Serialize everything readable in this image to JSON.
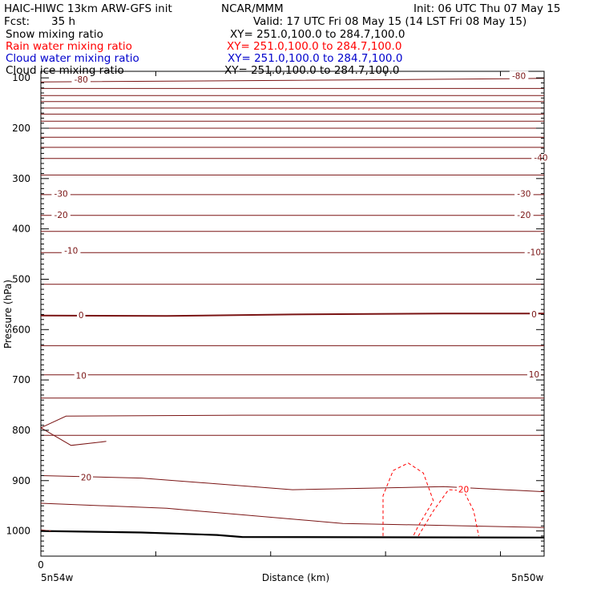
{
  "header": {
    "model_title": "HAIC-HIWC 13km ARW-GFS init",
    "org": "NCAR/MMM",
    "init": "Init: 06 UTC Thu 07 May 15",
    "fcst_label": "Fcst:",
    "fcst_value": "35 h",
    "valid": "Valid: 17 UTC Fri 08 May 15 (14 LST Fri 08 May 15)"
  },
  "legend": [
    {
      "label": "Snow mixing ratio",
      "xy": "XY= 251.0,100.0 to 284.7,100.0",
      "color": "#000000"
    },
    {
      "label": "Rain water mixing ratio",
      "xy": "XY= 251.0,100.0 to 284.7,100.0",
      "color": "#ff0000"
    },
    {
      "label": "Cloud water mixing ratio",
      "xy": "XY= 251.0,100.0 to 284.7,100.0",
      "color": "#0000cc"
    },
    {
      "label": "Cloud ice mixing ratio",
      "xy": "XY= 251.0,100.0 to 284.7,100.0",
      "color": "#000000"
    }
  ],
  "chart_data": {
    "type": "line",
    "xlabel": "Distance (km)",
    "ylabel": "Pressure (hPa)",
    "x_tick_labels": {
      "left": "5n54w",
      "right": "5n50w",
      "zero": "0"
    },
    "ylim": [
      1050,
      87
    ],
    "yticks": [
      100,
      200,
      300,
      400,
      500,
      600,
      700,
      800,
      900,
      1000
    ],
    "contour_color": "#7a1414",
    "rain_color": "#ff0000",
    "contour_labels": [
      {
        "text": "-80",
        "x": 0.08,
        "p": 103
      },
      {
        "text": "-80",
        "x": 0.95,
        "p": 96
      },
      {
        "text": "-40",
        "x": 1.05,
        "p": 258
      },
      {
        "text": "-30",
        "x": 0.04,
        "p": 330
      },
      {
        "text": "-30",
        "x": 0.96,
        "p": 330
      },
      {
        "text": "-20",
        "x": 0.04,
        "p": 372
      },
      {
        "text": "-20",
        "x": 0.96,
        "p": 372
      },
      {
        "text": "-10",
        "x": 0.06,
        "p": 443
      },
      {
        "text": "-10",
        "x": 0.98,
        "p": 446
      },
      {
        "text": "0",
        "x": 0.08,
        "p": 571
      },
      {
        "text": "0",
        "x": 0.98,
        "p": 569
      },
      {
        "text": "10",
        "x": 0.08,
        "p": 691
      },
      {
        "text": "10",
        "x": 0.98,
        "p": 689
      },
      {
        "text": "20",
        "x": 0.09,
        "p": 893
      },
      {
        "text": "20",
        "x": 0.84,
        "p": 917,
        "rain": true
      }
    ],
    "isolines": [
      [
        [
          0,
          108
        ],
        [
          0.5,
          105
        ],
        [
          0.9,
          102
        ],
        [
          1,
          101
        ]
      ],
      [
        [
          0,
          121
        ],
        [
          1,
          121
        ]
      ],
      [
        [
          0,
          135
        ],
        [
          1,
          135
        ]
      ],
      [
        [
          0,
          147
        ],
        [
          1,
          147
        ]
      ],
      [
        [
          0,
          160
        ],
        [
          1,
          160
        ]
      ],
      [
        [
          0,
          172
        ],
        [
          1,
          172
        ]
      ],
      [
        [
          0,
          186
        ],
        [
          1,
          186
        ]
      ],
      [
        [
          0,
          200
        ],
        [
          1,
          200
        ]
      ],
      [
        [
          0,
          218
        ],
        [
          1,
          218
        ]
      ],
      [
        [
          0,
          238
        ],
        [
          1,
          238
        ]
      ],
      [
        [
          0,
          260
        ],
        [
          1,
          260
        ]
      ],
      [
        [
          0,
          293
        ],
        [
          1,
          293
        ]
      ],
      [
        [
          0,
          332
        ],
        [
          1,
          332
        ]
      ],
      [
        [
          0,
          373
        ],
        [
          1,
          373
        ]
      ],
      [
        [
          0,
          405
        ],
        [
          1,
          405
        ]
      ],
      [
        [
          0,
          447
        ],
        [
          1,
          447
        ]
      ],
      [
        [
          0,
          510
        ],
        [
          1,
          510
        ]
      ],
      [
        [
          0,
          632
        ],
        [
          1,
          632
        ]
      ],
      [
        [
          0,
          690
        ],
        [
          1,
          690
        ]
      ],
      [
        [
          0,
          736
        ],
        [
          1,
          736
        ]
      ],
      [
        [
          0,
          810
        ],
        [
          0.35,
          810
        ],
        [
          1,
          810
        ]
      ],
      [
        [
          0,
          890
        ],
        [
          0.2,
          895
        ],
        [
          0.5,
          918
        ],
        [
          0.8,
          912
        ],
        [
          1,
          922
        ]
      ],
      [
        [
          0,
          945
        ],
        [
          0.25,
          955
        ],
        [
          0.6,
          985
        ],
        [
          1,
          993
        ]
      ]
    ],
    "zero_isotherm": [
      [
        0,
        572
      ],
      [
        0.25,
        573
      ],
      [
        0.5,
        570
      ],
      [
        0.8,
        568
      ],
      [
        1,
        568
      ]
    ],
    "ground": [
      [
        0,
        1000
      ],
      [
        0.2,
        1003
      ],
      [
        0.35,
        1008
      ],
      [
        0.4,
        1012
      ],
      [
        1,
        1013
      ]
    ],
    "wedge": [
      [
        0,
        795
      ],
      [
        0.05,
        772
      ],
      [
        0.4,
        770
      ],
      [
        1,
        770
      ]
    ],
    "wedge_lower": [
      [
        0,
        795
      ],
      [
        0.06,
        830
      ],
      [
        0.13,
        822
      ]
    ],
    "ground_thin": [
      [
        0,
        998
      ],
      [
        0.02,
        1000
      ]
    ],
    "rain_lines": [
      [
        [
          0.68,
          1010
        ],
        [
          0.68,
          930
        ],
        [
          0.7,
          880
        ],
        [
          0.73,
          865
        ],
        [
          0.76,
          885
        ],
        [
          0.78,
          940
        ],
        [
          0.75,
          990
        ],
        [
          0.74,
          1010
        ]
      ],
      [
        [
          0.75,
          1010
        ],
        [
          0.78,
          960
        ],
        [
          0.81,
          918
        ],
        [
          0.84,
          920
        ],
        [
          0.86,
          960
        ],
        [
          0.87,
          1010
        ]
      ]
    ]
  }
}
